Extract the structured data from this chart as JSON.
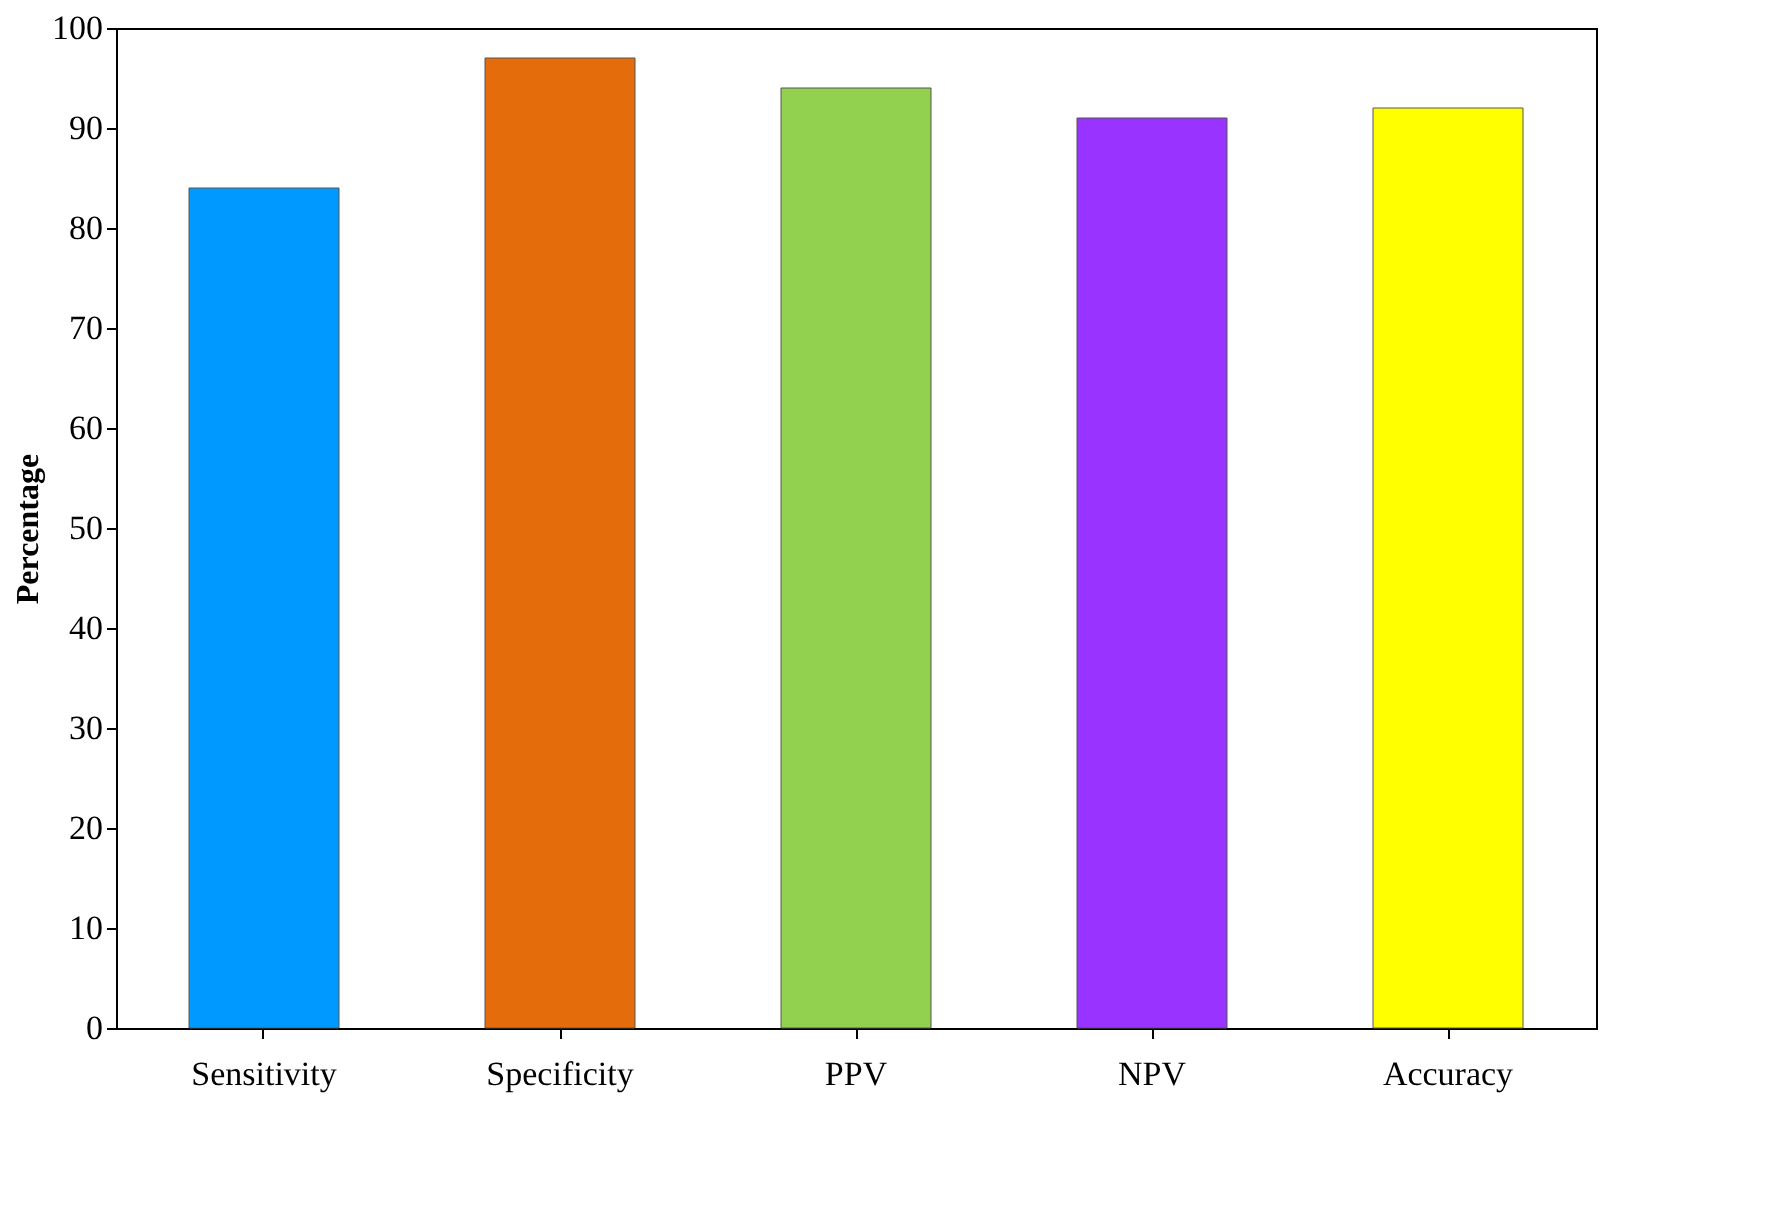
{
  "chart_data": {
    "type": "bar",
    "ylabel": "Percentage",
    "categories": [
      "Sensitivity",
      "Specificity",
      "PPV",
      "NPV",
      "Accuracy"
    ],
    "values": [
      84,
      97,
      94,
      91,
      92
    ],
    "colors": [
      "#0099ff",
      "#e46c0a",
      "#92d050",
      "#9933ff",
      "#ffff00"
    ],
    "ylim": [
      0,
      100
    ],
    "yticks": [
      0,
      10,
      20,
      30,
      40,
      50,
      60,
      70,
      80,
      90,
      100
    ],
    "grid": false
  }
}
